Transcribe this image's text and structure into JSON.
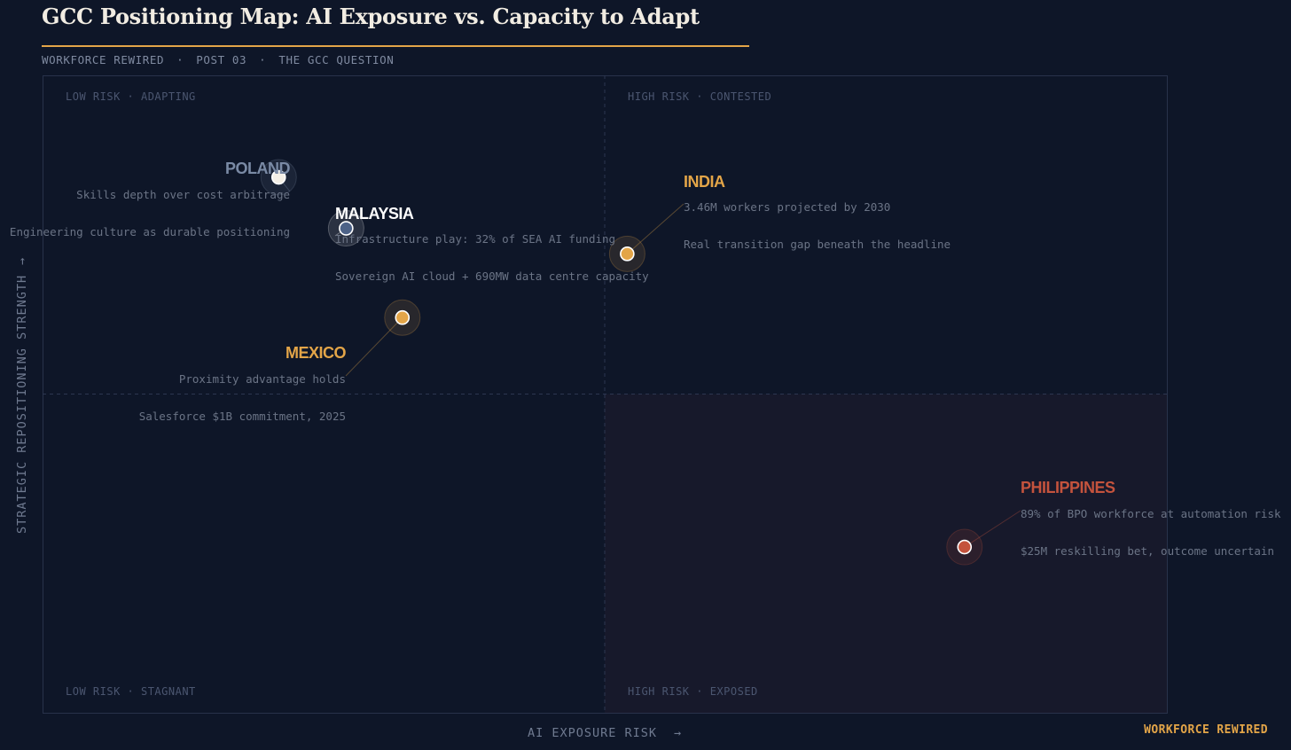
{
  "header": {
    "title": "GCC Positioning Map: AI Exposure vs. Capacity to Adapt",
    "subtitle_parts": [
      "WORKFORCE REWIRED",
      "POST 03",
      "THE GCC QUESTION"
    ],
    "subtitle_sep": "·"
  },
  "brand": "WORKFORCE REWIRED",
  "colors": {
    "background": "#0e1628",
    "accent": "#e3a548",
    "risk": "#c4533d",
    "neutral": "#7a8aa5",
    "highlight": "#ffffff"
  },
  "chart_data": {
    "type": "scatter",
    "title": "GCC Positioning Map: AI Exposure vs. Capacity to Adapt",
    "xlabel": "AI EXPOSURE RISK",
    "xlabel_arrow": "→",
    "ylabel": "STRATEGIC REPOSITIONING STRENGTH",
    "ylabel_arrow": "→",
    "xlim": [
      0,
      100
    ],
    "ylim": [
      0,
      100
    ],
    "grid": false,
    "quadrant_dividers": {
      "x": 50,
      "y": 50
    },
    "quadrants": [
      {
        "id": "top-left",
        "risk": "LOW RISK",
        "state": "ADAPTING"
      },
      {
        "id": "top-right",
        "risk": "HIGH RISK",
        "state": "CONTESTED"
      },
      {
        "id": "bottom-left",
        "risk": "LOW RISK",
        "state": "STAGNANT"
      },
      {
        "id": "bottom-right",
        "risk": "HIGH RISK",
        "state": "EXPOSED"
      }
    ],
    "quadrant_sep": "·",
    "points": [
      {
        "name": "POLAND",
        "x": 21,
        "y": 84,
        "color": "#7a8aa5",
        "dot": "#f4efe6",
        "notes": [
          "Skills depth over cost arbitrage",
          "Engineering culture as durable positioning"
        ]
      },
      {
        "name": "MALAYSIA",
        "x": 27,
        "y": 76,
        "color": "#ffffff",
        "dot": "#4d6287",
        "notes": [
          "Infrastructure play: 32% of SEA AI funding",
          "Sovereign AI cloud + 690MW data centre capacity"
        ]
      },
      {
        "name": "INDIA",
        "x": 52,
        "y": 72,
        "color": "#e3a548",
        "dot": "#e3a548",
        "notes": [
          "3.46M workers projected by 2030",
          "Real transition gap beneath the headline"
        ]
      },
      {
        "name": "MEXICO",
        "x": 32,
        "y": 62,
        "color": "#e3a548",
        "dot": "#e3a548",
        "notes": [
          "Proximity advantage holds",
          "Salesforce $1B commitment, 2025"
        ]
      },
      {
        "name": "PHILIPPINES",
        "x": 82,
        "y": 26,
        "color": "#c4533d",
        "dot": "#c4533d",
        "notes": [
          "89% of BPO workforce at automation risk",
          "$25M reskilling bet, outcome uncertain"
        ]
      }
    ]
  }
}
